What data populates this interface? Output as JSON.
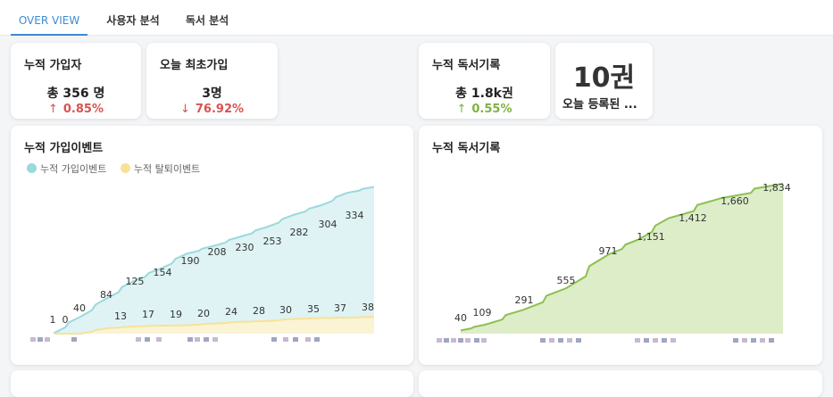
{
  "tabs": [
    {
      "label": "OVER VIEW",
      "active": true
    },
    {
      "label": "사용자 분석",
      "active": false
    },
    {
      "label": "독서 분석",
      "active": false
    }
  ],
  "stats": {
    "total_members": {
      "title": "누적 가입자",
      "value": "총 356 명",
      "delta": "0.85%",
      "arrow": "↑",
      "color": "#d9534f"
    },
    "today_first_join": {
      "title": "오늘 최초가입",
      "value": "3명",
      "delta": "76.92%",
      "arrow": "↓",
      "color": "#d9534f"
    },
    "total_reading": {
      "title": "누적 독서기록",
      "value": "총 1.8k권",
      "delta": "0.55%",
      "arrow": "↑",
      "color": "#7cb342"
    },
    "today_books": {
      "value": "10권",
      "label": "오늘 등록된 ..."
    }
  },
  "colors": {
    "accent": "#3b8bd4",
    "join_line": "#9ad9dc",
    "join_fill": "#dff3f4",
    "leave_line": "#f7e29a",
    "leave_fill": "#faf3d4",
    "reading_line": "#8dc04f",
    "reading_fill": "#dcedc8"
  },
  "chart_data": [
    {
      "type": "area",
      "title": "누적 가입이벤트",
      "legend_position": "top-left",
      "x_tick_labels_readable": false,
      "series": [
        {
          "name": "누적 가입이벤트",
          "values": [
            1,
            40,
            84,
            125,
            154,
            190,
            208,
            230,
            253,
            282,
            304,
            334
          ],
          "end_value": 348
        },
        {
          "name": "누적 탈퇴이벤트",
          "values": [
            0,
            13,
            17,
            19,
            20,
            24,
            28,
            30,
            35,
            37,
            38
          ],
          "end_value": 40
        }
      ],
      "labels_join": [
        "1",
        "40",
        "84",
        "125",
        "154",
        "190",
        "208",
        "230",
        "253",
        "282",
        "304",
        "334"
      ],
      "labels_leave": [
        "0",
        "13",
        "17",
        "19",
        "20",
        "24",
        "28",
        "30",
        "35",
        "37",
        "38"
      ],
      "ylim": [
        0,
        400
      ]
    },
    {
      "type": "area",
      "title": "누적 독서기록",
      "x_tick_labels_readable": false,
      "series": [
        {
          "values": [
            40,
            109,
            291,
            555,
            971,
            1151,
            1412,
            1660,
            1834
          ]
        }
      ],
      "labels": [
        "40",
        "109",
        "291",
        "555",
        "971",
        "1,151",
        "1,412",
        "1,660",
        "1,834"
      ],
      "ylim": [
        0,
        2000
      ]
    }
  ]
}
